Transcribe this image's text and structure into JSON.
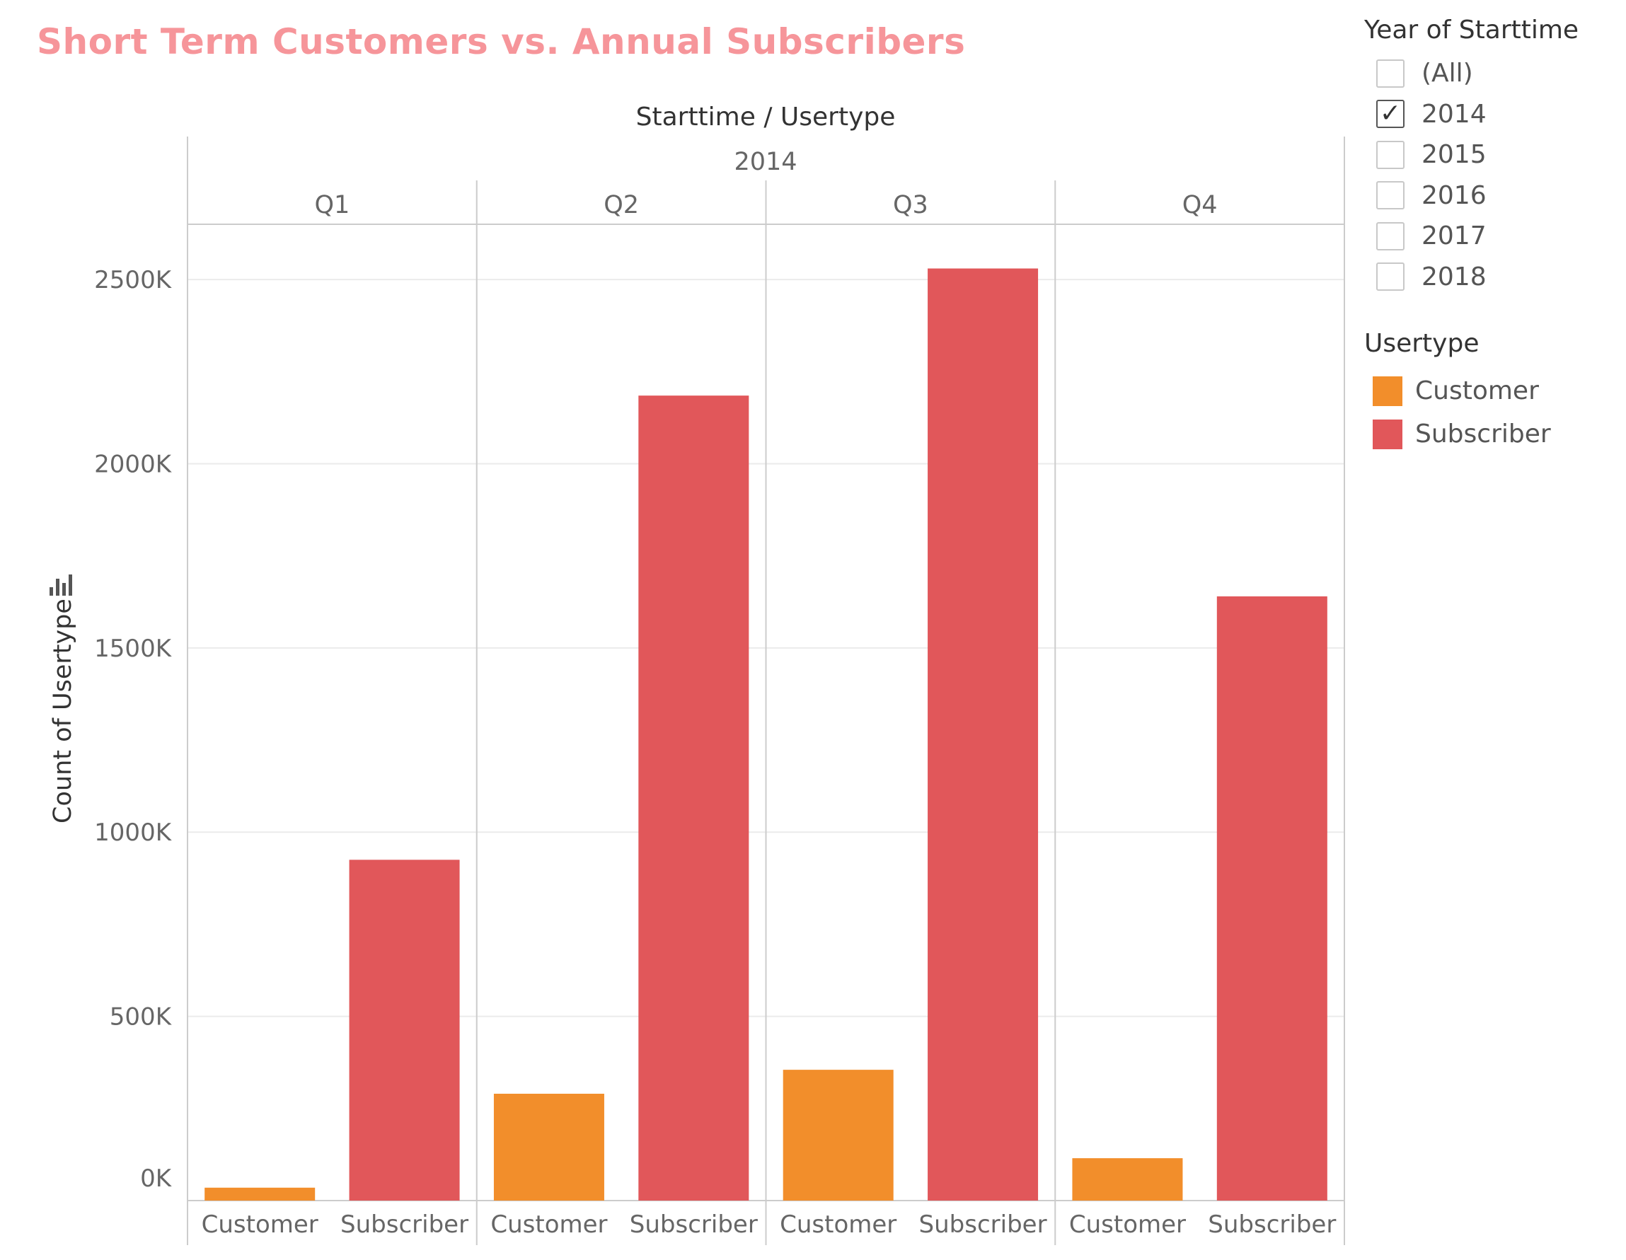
{
  "page": {
    "title": "Short Term Customers vs. Annual Subscribers",
    "title_color": "#f6959a"
  },
  "filter": {
    "title": "Year of Starttime",
    "options": [
      {
        "label": "(All)",
        "checked": false
      },
      {
        "label": "2014",
        "checked": true
      },
      {
        "label": "2015",
        "checked": false
      },
      {
        "label": "2016",
        "checked": false
      },
      {
        "label": "2017",
        "checked": false
      },
      {
        "label": "2018",
        "checked": false
      }
    ]
  },
  "legend": {
    "title": "Usertype",
    "items": [
      {
        "label": "Customer",
        "color": "#f28e2b"
      },
      {
        "label": "Subscriber",
        "color": "#e1575a"
      }
    ]
  },
  "chart_data": {
    "type": "bar",
    "column_header_title": "Starttime / Usertype",
    "year": "2014",
    "ylabel": "Count of Usertype",
    "sort_icon": "sort-descending-icon",
    "ylim": [
      0,
      2650
    ],
    "y_ticks": [
      0,
      500,
      1000,
      1500,
      2000,
      2500
    ],
    "y_tick_labels": [
      "0K",
      "500K",
      "1000K",
      "1500K",
      "2000K",
      "2500K"
    ],
    "grid": true,
    "legend_position": "right",
    "groups": [
      {
        "label": "Q1",
        "bars": [
          {
            "category": "Customer",
            "value": 35
          },
          {
            "category": "Subscriber",
            "value": 925
          }
        ]
      },
      {
        "label": "Q2",
        "bars": [
          {
            "category": "Customer",
            "value": 290
          },
          {
            "category": "Subscriber",
            "value": 2185
          }
        ]
      },
      {
        "label": "Q3",
        "bars": [
          {
            "category": "Customer",
            "value": 355
          },
          {
            "category": "Subscriber",
            "value": 2530
          }
        ]
      },
      {
        "label": "Q4",
        "bars": [
          {
            "category": "Customer",
            "value": 115
          },
          {
            "category": "Subscriber",
            "value": 1640
          }
        ]
      }
    ],
    "series_colors": {
      "Customer": "#f28e2b",
      "Subscriber": "#e1575a"
    }
  }
}
